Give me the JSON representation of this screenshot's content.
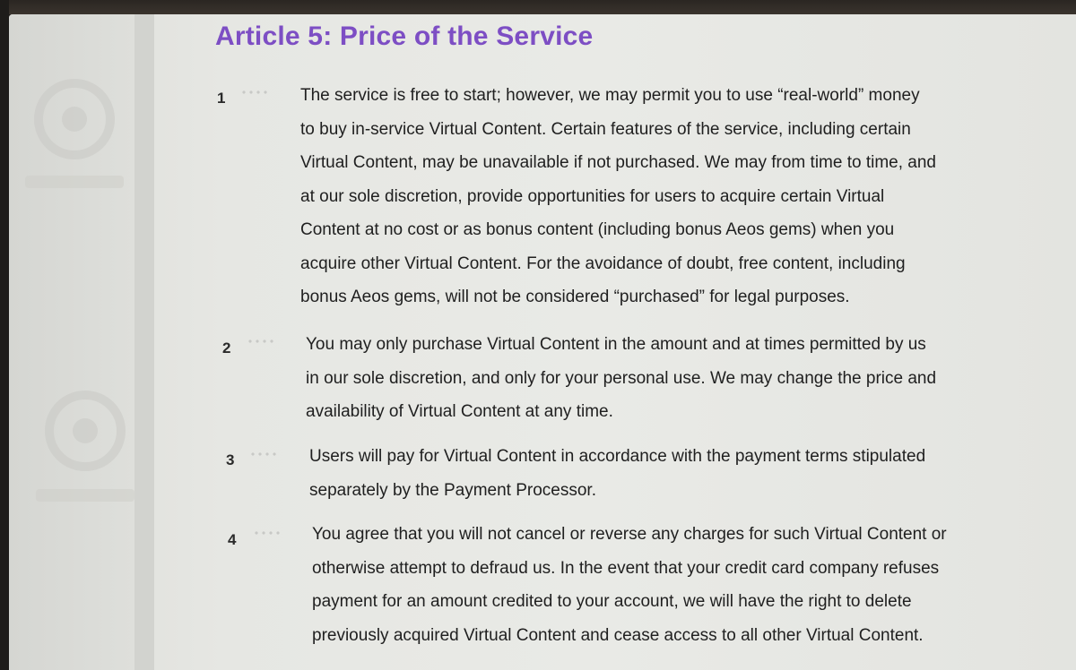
{
  "article": {
    "title": "Article 5: Price of the Service"
  },
  "clauses": [
    {
      "number": "1",
      "text": "The service is free to start; however, we may permit you to use “real-world” money\nto buy in-service Virtual Content. Certain features of the service, including certain\nVirtual Content, may be unavailable if not purchased. We may from time to time, and\nat our sole discretion, provide opportunities for users to acquire certain Virtual\nContent at no cost or as bonus content (including bonus Aeos gems) when you\nacquire other Virtual Content. For the avoidance of doubt, free content, including\nbonus Aeos gems, will not be considered “purchased” for legal purposes."
    },
    {
      "number": "2",
      "text": "You may only purchase Virtual Content in the amount and at times permitted by us\nin our sole discretion, and only for your personal use. We may change the price and\navailability of Virtual Content at any time."
    },
    {
      "number": "3",
      "text": "Users will pay for Virtual Content in accordance with the payment terms stipulated\nseparately by the Payment Processor."
    },
    {
      "number": "4",
      "text": "You agree that you will not cancel or reverse any charges for such Virtual Content or\notherwise attempt to defraud us. In the event that your credit card company refuses\npayment for an amount credited to your account, we will have the right to delete\npreviously acquired Virtual Content and cease access to all other Virtual Content."
    }
  ],
  "colors": {
    "title": "#7d4ec4",
    "body_text": "#1f1f1f",
    "background": "#e9eae6"
  }
}
